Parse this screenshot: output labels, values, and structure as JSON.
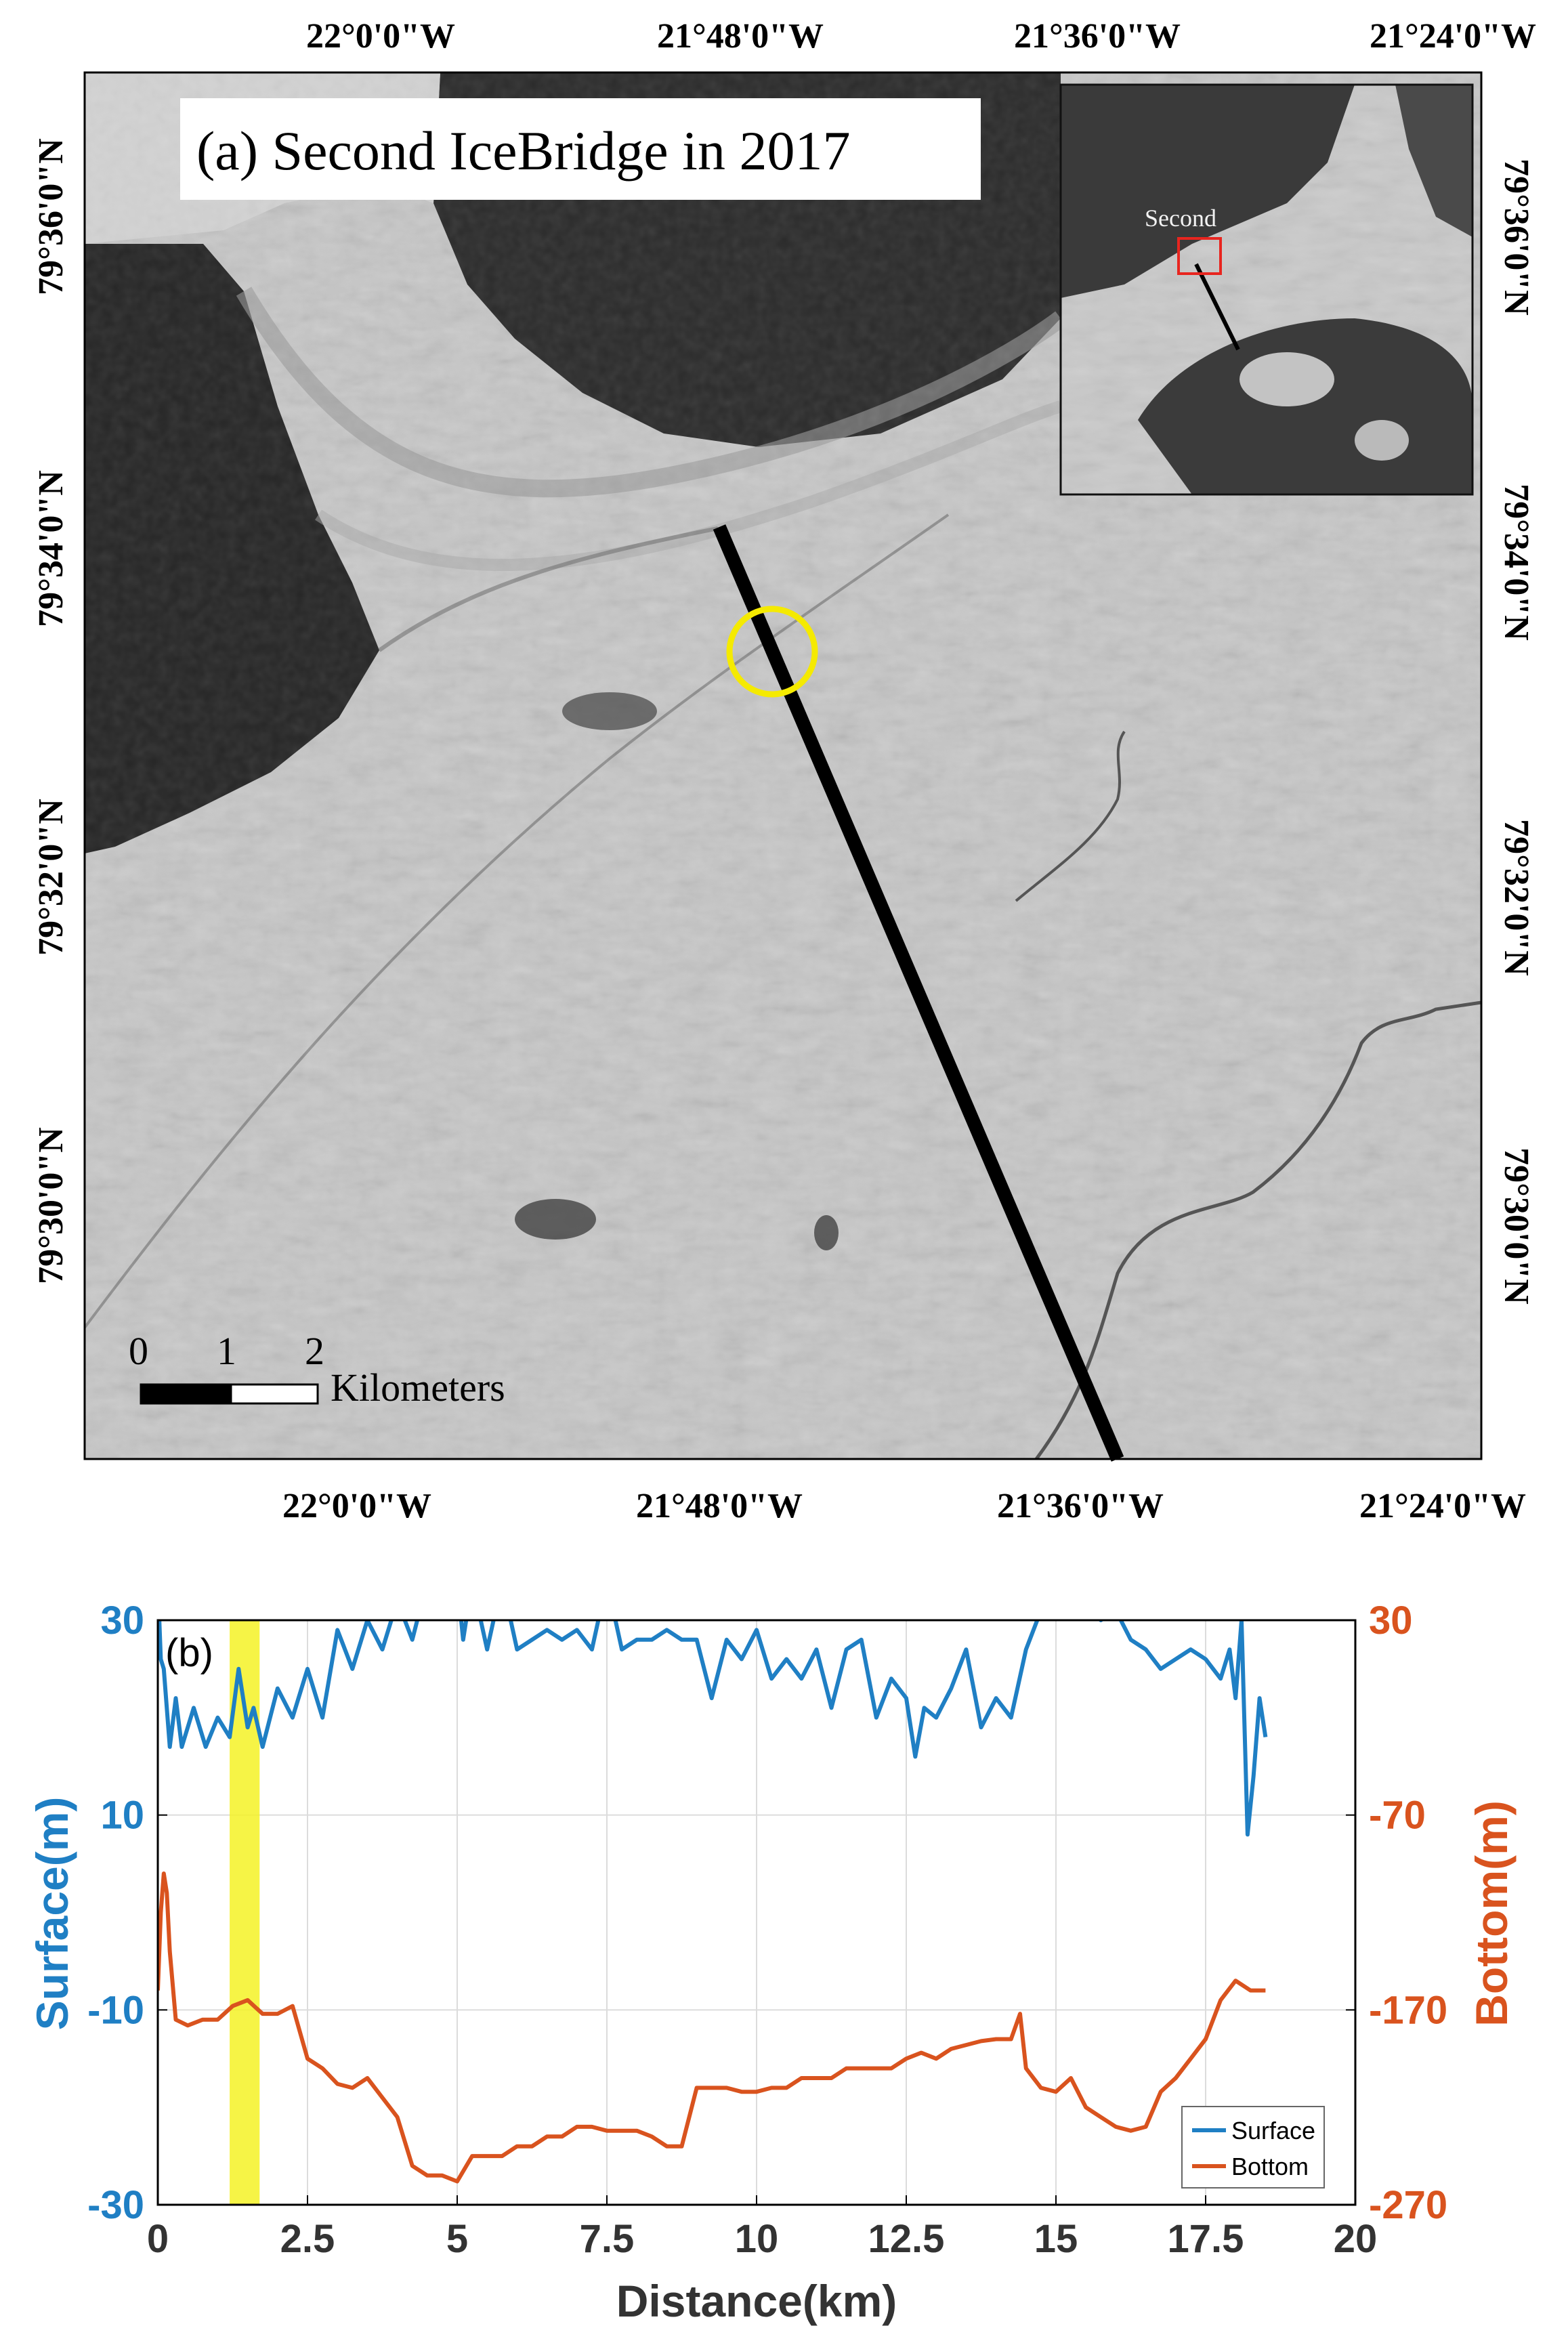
{
  "colors": {
    "surface": "#1f7fc4",
    "bottom": "#d9531e",
    "highlight": "#f5f226",
    "track": "#000000",
    "marker_circle": "#f5ea00",
    "inset_box": "#e8251f"
  },
  "map_panel": {
    "title": "(a) Second IceBridge in 2017",
    "lon_ticks_top": [
      "22°0'0\"W",
      "21°48'0\"W",
      "21°36'0\"W",
      "21°24'0\"W"
    ],
    "lon_ticks_bottom": [
      "22°0'0\"W",
      "21°48'0\"W",
      "21°36'0\"W",
      "21°24'0\"W"
    ],
    "lat_ticks_left": [
      "79°36'0\"N",
      "79°34'0\"N",
      "79°32'0\"N",
      "79°30'0\"N"
    ],
    "lat_ticks_right": [
      "79°36'0\"N",
      "79°34'0\"N",
      "79°32'0\"N",
      "79°30'0\"N"
    ],
    "scalebar": {
      "ticks": [
        "0",
        "1",
        "2"
      ],
      "unit": "Kilometers"
    },
    "inset_label": "Second",
    "track_icon": "flight-track-line",
    "marker_icon": "yellow-circle-marker"
  },
  "chart_data": {
    "type": "line",
    "panel_label": "(b)",
    "xlabel": "Distance(km)",
    "ylabel_left": "Surface(m)",
    "ylabel_right": "Bottom(m)",
    "xlim": [
      0,
      20
    ],
    "ylim_left": [
      -30,
      30
    ],
    "ylim_right": [
      -270,
      30
    ],
    "xticks": [
      "0",
      "2.5",
      "5",
      "7.5",
      "10",
      "12.5",
      "15",
      "17.5",
      "20"
    ],
    "yticks_left": [
      "30",
      "10",
      "-10",
      "-30"
    ],
    "yticks_right": [
      "30",
      "-70",
      "-170",
      "-270"
    ],
    "grid": true,
    "legend_position": "bottom-right",
    "highlight_band_x": [
      1.2,
      1.7
    ],
    "series": [
      {
        "name": "Surface",
        "axis": "left",
        "x": [
          0,
          0.05,
          0.1,
          0.2,
          0.3,
          0.4,
          0.6,
          0.8,
          1.0,
          1.2,
          1.35,
          1.5,
          1.6,
          1.75,
          2.0,
          2.25,
          2.5,
          2.75,
          3.0,
          3.25,
          3.5,
          3.75,
          4.0,
          4.25,
          4.5,
          4.75,
          5.0,
          5.1,
          5.25,
          5.5,
          5.75,
          6.0,
          6.25,
          6.5,
          6.75,
          7.0,
          7.25,
          7.5,
          7.75,
          8.0,
          8.25,
          8.5,
          8.75,
          9.0,
          9.25,
          9.5,
          9.75,
          10.0,
          10.25,
          10.5,
          10.75,
          11.0,
          11.25,
          11.5,
          11.75,
          12.0,
          12.25,
          12.5,
          12.65,
          12.8,
          13.0,
          13.25,
          13.5,
          13.75,
          14.0,
          14.25,
          14.5,
          14.75,
          15.0,
          15.25,
          15.5,
          15.75,
          16.0,
          16.25,
          16.5,
          16.75,
          17.0,
          17.25,
          17.5,
          17.75,
          17.9,
          18.0,
          18.1,
          18.2,
          18.3,
          18.4,
          18.5
        ],
        "values": [
          34,
          26,
          25,
          17,
          22,
          17,
          21,
          17,
          20,
          18,
          25,
          19,
          21,
          17,
          23,
          20,
          25,
          20,
          29,
          25,
          30,
          27,
          32,
          28,
          34,
          34,
          34,
          28,
          34,
          27,
          34,
          27,
          28,
          29,
          28,
          29,
          27,
          34,
          27,
          28,
          28,
          29,
          28,
          28,
          22,
          28,
          26,
          29,
          24,
          26,
          24,
          27,
          21,
          27,
          28,
          20,
          24,
          22,
          16,
          21,
          20,
          23,
          27,
          19,
          22,
          20,
          27,
          31,
          34,
          31,
          32,
          30,
          31,
          28,
          27,
          25,
          26,
          27,
          26,
          24,
          27,
          22,
          30,
          8,
          14,
          22,
          18
        ]
      },
      {
        "name": "Bottom",
        "axis": "right",
        "x": [
          0,
          0.05,
          0.1,
          0.15,
          0.2,
          0.3,
          0.5,
          0.75,
          1.0,
          1.25,
          1.5,
          1.75,
          2.0,
          2.25,
          2.5,
          2.75,
          3.0,
          3.25,
          3.5,
          3.75,
          4.0,
          4.25,
          4.5,
          4.75,
          5.0,
          5.25,
          5.5,
          5.75,
          6.0,
          6.25,
          6.5,
          6.75,
          7.0,
          7.25,
          7.5,
          7.75,
          8.0,
          8.25,
          8.5,
          8.75,
          9.0,
          9.25,
          9.5,
          9.75,
          10.0,
          10.25,
          10.5,
          10.75,
          11.0,
          11.25,
          11.5,
          11.75,
          12.0,
          12.25,
          12.5,
          12.75,
          13.0,
          13.25,
          13.5,
          13.75,
          14.0,
          14.25,
          14.4,
          14.5,
          14.75,
          15.0,
          15.25,
          15.5,
          15.75,
          16.0,
          16.25,
          16.5,
          16.75,
          17.0,
          17.25,
          17.5,
          17.75,
          18.0,
          18.25,
          18.5
        ],
        "values": [
          -160,
          -120,
          -100,
          -110,
          -140,
          -175,
          -178,
          -175,
          -175,
          -168,
          -165,
          -172,
          -172,
          -168,
          -195,
          -200,
          -208,
          -210,
          -205,
          -215,
          -225,
          -250,
          -255,
          -255,
          -258,
          -245,
          -245,
          -245,
          -240,
          -240,
          -235,
          -235,
          -230,
          -230,
          -232,
          -232,
          -232,
          -235,
          -240,
          -240,
          -210,
          -210,
          -210,
          -212,
          -212,
          -210,
          -210,
          -205,
          -205,
          -205,
          -200,
          -200,
          -200,
          -200,
          -195,
          -192,
          -195,
          -190,
          -188,
          -186,
          -185,
          -185,
          -172,
          -200,
          -210,
          -212,
          -205,
          -220,
          -225,
          -230,
          -232,
          -230,
          -212,
          -205,
          -195,
          -185,
          -165,
          -155,
          -160,
          -160
        ]
      }
    ]
  }
}
